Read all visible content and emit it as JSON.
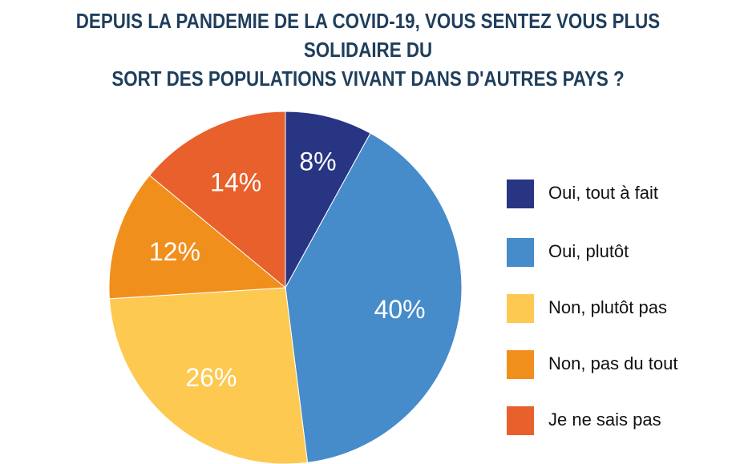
{
  "chart_data": {
    "type": "pie",
    "title_lines": [
      "DEPUIS LA PANDEMIE DE LA COVID-19, VOUS SENTEZ VOUS PLUS SOLIDAIRE DU",
      "SORT DES POPULATIONS VIVANT DANS D'AUTRES PAYS ?"
    ],
    "slices": [
      {
        "name": "Oui, tout à fait",
        "value": 8,
        "label": "8%",
        "color": "#283583"
      },
      {
        "name": "Oui, plutôt",
        "value": 40,
        "label": "40%",
        "color": "#468bca"
      },
      {
        "name": "Non, plutôt pas",
        "value": 26,
        "label": "26%",
        "color": "#fdc951"
      },
      {
        "name": "Non, pas du tout",
        "value": 12,
        "label": "12%",
        "color": "#f18f1c"
      },
      {
        "name": "Je ne sais pas",
        "value": 14,
        "label": "14%",
        "color": "#e8602c"
      }
    ],
    "start": "12 o'clock",
    "direction": "clockwise",
    "legend_position": "right"
  }
}
